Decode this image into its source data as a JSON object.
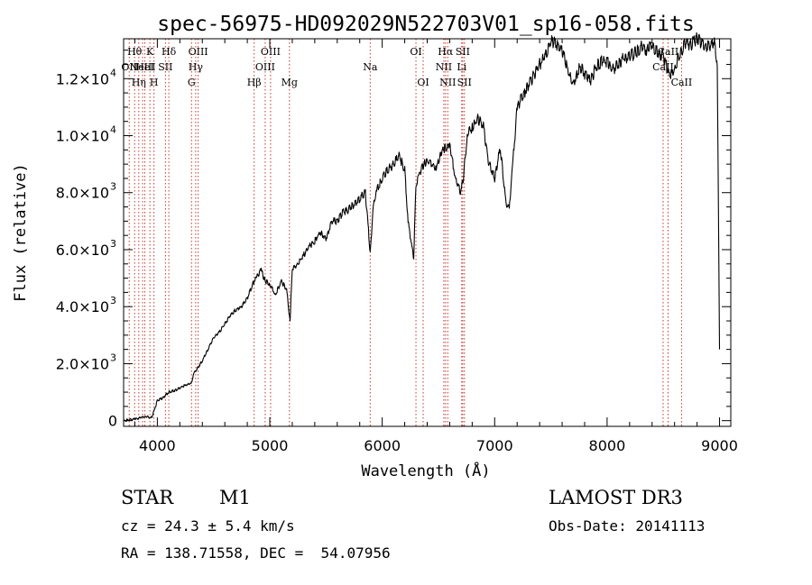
{
  "chart_data": {
    "type": "line",
    "title": "spec-56975-HD092029N522703V01_sp16-058.fits",
    "xlabel": "Wavelength (Å)",
    "ylabel": "Flux (relative)",
    "xlim": [
      3700,
      9100
    ],
    "ylim": [
      -200,
      13400
    ],
    "x_ticks": [
      4000,
      5000,
      6000,
      7000,
      8000,
      9000
    ],
    "y_ticks": [
      {
        "value": 0,
        "mantissa": "0",
        "exp": ""
      },
      {
        "value": 2000,
        "mantissa": "2.0×10",
        "exp": "3"
      },
      {
        "value": 4000,
        "mantissa": "4.0×10",
        "exp": "3"
      },
      {
        "value": 6000,
        "mantissa": "6.0×10",
        "exp": "3"
      },
      {
        "value": 8000,
        "mantissa": "8.0×10",
        "exp": "3"
      },
      {
        "value": 10000,
        "mantissa": "1.0×10",
        "exp": "4"
      },
      {
        "value": 12000,
        "mantissa": "1.2×10",
        "exp": "4"
      }
    ],
    "grid": false,
    "spectrum": {
      "x": [
        3700,
        3800,
        3900,
        3950,
        4000,
        4050,
        4100,
        4150,
        4200,
        4250,
        4300,
        4330,
        4350,
        4400,
        4450,
        4500,
        4550,
        4600,
        4650,
        4700,
        4750,
        4800,
        4850,
        4880,
        4920,
        4960,
        5000,
        5050,
        5100,
        5150,
        5180,
        5200,
        5250,
        5300,
        5350,
        5400,
        5450,
        5500,
        5550,
        5600,
        5650,
        5700,
        5750,
        5800,
        5850,
        5893,
        5920,
        5950,
        6000,
        6050,
        6100,
        6150,
        6200,
        6230,
        6280,
        6300,
        6330,
        6370,
        6420,
        6480,
        6520,
        6563,
        6600,
        6650,
        6700,
        6720,
        6760,
        6800,
        6850,
        6900,
        6950,
        7000,
        7050,
        7100,
        7130,
        7160,
        7200,
        7250,
        7300,
        7350,
        7400,
        7450,
        7500,
        7550,
        7600,
        7650,
        7700,
        7750,
        7800,
        7850,
        7900,
        7950,
        8000,
        8050,
        8100,
        8150,
        8200,
        8250,
        8300,
        8350,
        8400,
        8450,
        8500,
        8550,
        8600,
        8650,
        8700,
        8750,
        8800,
        8850,
        8900,
        8950,
        8980,
        9000
      ],
      "y": [
        0,
        50,
        150,
        100,
        700,
        800,
        1000,
        1050,
        1150,
        1250,
        1300,
        1700,
        1800,
        2100,
        2500,
        2900,
        3100,
        3400,
        3700,
        3900,
        4000,
        4300,
        4800,
        5000,
        5300,
        4900,
        4800,
        4400,
        4900,
        4600,
        3500,
        5300,
        5500,
        5800,
        6100,
        6300,
        6600,
        6400,
        7000,
        7000,
        7300,
        7400,
        7600,
        7800,
        8000,
        5900,
        7500,
        8100,
        8500,
        8800,
        9000,
        9300,
        8800,
        7000,
        5700,
        8300,
        8700,
        9000,
        9100,
        8800,
        9400,
        9600,
        9700,
        8500,
        8000,
        8500,
        10100,
        10300,
        10600,
        10300,
        9000,
        8500,
        9600,
        7600,
        7400,
        9000,
        11000,
        11400,
        11800,
        12100,
        12500,
        12800,
        13300,
        13200,
        13000,
        12300,
        11800,
        12400,
        12200,
        11900,
        12400,
        12600,
        12600,
        12300,
        12500,
        12700,
        12800,
        12900,
        13100,
        13000,
        13200,
        12900,
        12800,
        12100,
        12300,
        12900,
        13300,
        13200,
        13400,
        13200,
        13100,
        13300,
        12600,
        2500
      ]
    },
    "lines": [
      {
        "x": 3750,
        "label": "OII",
        "row": 2
      },
      {
        "x": 3798,
        "label": "Hθ",
        "row": 1
      },
      {
        "x": 3835,
        "label": "Hη",
        "row": 3
      },
      {
        "x": 3869,
        "label": "NeIII",
        "row": 2
      },
      {
        "x": 3889,
        "label": "HeI",
        "row": 2
      },
      {
        "x": 3934,
        "label": "K",
        "row": 1
      },
      {
        "x": 3970,
        "label": "H",
        "row": 3
      },
      {
        "x": 4072,
        "label": "SII",
        "row": 2
      },
      {
        "x": 4102,
        "label": "Hδ",
        "row": 1
      },
      {
        "x": 4304,
        "label": "G",
        "row": 3
      },
      {
        "x": 4341,
        "label": "Hγ",
        "row": 2
      },
      {
        "x": 4363,
        "label": "OIII",
        "row": 1
      },
      {
        "x": 4861,
        "label": "Hβ",
        "row": 3
      },
      {
        "x": 4959,
        "label": "OIII",
        "row": 2
      },
      {
        "x": 5007,
        "label": "OIII",
        "row": 1
      },
      {
        "x": 5175,
        "label": "Mg",
        "row": 3
      },
      {
        "x": 5893,
        "label": "Na",
        "row": 2
      },
      {
        "x": 6300,
        "label": "OI",
        "row": 1
      },
      {
        "x": 6364,
        "label": "OI",
        "row": 3
      },
      {
        "x": 6548,
        "label": "NII",
        "row": 2
      },
      {
        "x": 6563,
        "label": "Hα",
        "row": 1
      },
      {
        "x": 6583,
        "label": "NII",
        "row": 3
      },
      {
        "x": 6707,
        "label": "Li",
        "row": 2
      },
      {
        "x": 6716,
        "label": "SII",
        "row": 1
      },
      {
        "x": 6731,
        "label": "SII",
        "row": 3
      },
      {
        "x": 8498,
        "label": "CaII",
        "row": 2
      },
      {
        "x": 8542,
        "label": "CaII",
        "row": 1
      },
      {
        "x": 8662,
        "label": "CaII",
        "row": 3
      }
    ]
  },
  "info": {
    "class_label": "STAR",
    "subclass": "M1",
    "survey": "LAMOST DR3",
    "redshift": "cz = 24.3 ± 5.4 km/s",
    "obs_date": "Obs-Date: 20141113",
    "coords": "RA = 138.71558, DEC =  54.07956"
  }
}
